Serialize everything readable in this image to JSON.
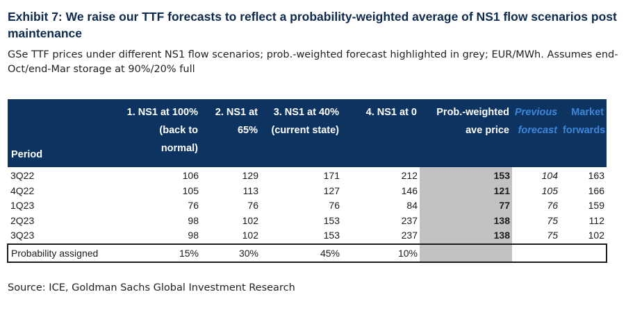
{
  "title": "Exhibit 7: We raise our TTF forecasts to reflect a probability-weighted average of NS1 flow scenarios post maintenance",
  "subtitle": "GSe TTF prices under different NS1 flow scenarios; prob.-weighted forecast highlighted in grey; EUR/MWh. Assumes end-Oct/end-Mar storage at 90%/20% full",
  "source": "Source: ICE, Goldman Sachs Global Investment Research",
  "colors": {
    "header_bg": "#0d3460",
    "highlight": "#c2c2c2",
    "accent_blue": "#3e86d8"
  },
  "table": {
    "headers": [
      "Period",
      "1. NS1 at 100% (back to normal)",
      "2. NS1 at 65%",
      "3. NS1 at 40% (current state)",
      "4. NS1 at 0",
      "Prob.-weighted ave price",
      "Previous forecast",
      "Market forwards"
    ],
    "rows": [
      [
        "3Q22",
        "106",
        "129",
        "171",
        "212",
        "153",
        "104",
        "163"
      ],
      [
        "4Q22",
        "105",
        "113",
        "127",
        "146",
        "121",
        "105",
        "166"
      ],
      [
        "1Q23",
        "76",
        "76",
        "76",
        "84",
        "77",
        "76",
        "159"
      ],
      [
        "2Q23",
        "98",
        "102",
        "153",
        "237",
        "138",
        "75",
        "112"
      ],
      [
        "3Q23",
        "98",
        "102",
        "153",
        "237",
        "138",
        "75",
        "102"
      ]
    ],
    "probability_row": [
      "Probability assigned",
      "15%",
      "30%",
      "45%",
      "10%",
      "",
      "",
      ""
    ]
  }
}
